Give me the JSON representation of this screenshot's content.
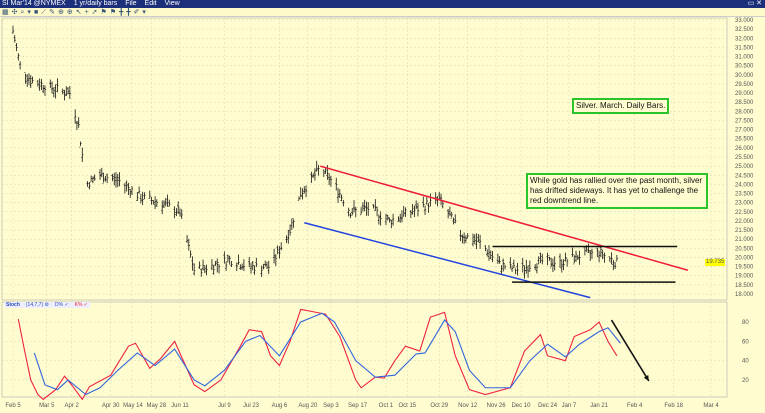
{
  "window": {
    "symbol": "SI Mar'14 @NYMEX",
    "interval": "1 yr/daily bars",
    "menu": [
      "File",
      "Edit",
      "View"
    ],
    "controls": "▭ ✕"
  },
  "toolbar": {
    "icons": [
      "chart-icon",
      "crosshair-icon",
      "zoom-icon",
      "dropdown-icon",
      "bar-icon",
      "line-icon",
      "draw-icon",
      "magnify-icon",
      "magnify-icon",
      "cursor-icon",
      "plus-icon",
      "arrow-icon",
      "flag-icon",
      "flag-icon",
      "marker-icon",
      "marker-icon",
      "pencil-icon",
      "dropdown-icon"
    ]
  },
  "notes": {
    "title": "Silver. March. Daily Bars.",
    "comment": "While gold has rallied over the past month, silver has drifted sideways.  It has yet to challenge the red downtrend line."
  },
  "stoch_legend": {
    "name": "Stoch",
    "params": "(14,7,7) ⚙",
    "d": "D% ✓",
    "k": "K% ✓"
  },
  "last_price": "19.735",
  "colors": {
    "bars": "#111111",
    "downtrend": "#ee1c3a",
    "uptrend": "#2244dd",
    "channel": "#111111",
    "k": "#ee2244",
    "d": "#3366dd",
    "note_border": "#2bc42b"
  },
  "chart_data": [
    {
      "type": "bar",
      "title": "SI Mar'14 daily bars",
      "ylim": [
        18,
        33
      ],
      "yticks": [
        "33.000",
        "32.500",
        "32.000",
        "31.500",
        "31.000",
        "30.500",
        "30.000",
        "29.500",
        "29.000",
        "28.500",
        "28.000",
        "27.500",
        "27.000",
        "26.500",
        "26.000",
        "25.500",
        "25.000",
        "24.500",
        "24.000",
        "23.500",
        "23.000",
        "22.500",
        "22.000",
        "21.500",
        "21.000",
        "20.500",
        "20.000",
        "19.500",
        "19.000",
        "18.500",
        "18.000"
      ],
      "x_unit": "days since Feb 5",
      "xlim": [
        -2,
        391
      ],
      "xticks": [
        {
          "label": "Feb 5",
          "day": 0
        },
        {
          "label": "Mar 5",
          "day": 19
        },
        {
          "label": "Apr 2",
          "day": 33
        },
        {
          "label": "Apr 30",
          "day": 55
        },
        {
          "label": "May 14",
          "day": 67
        },
        {
          "label": "May 28",
          "day": 78
        },
        {
          "label": "Jun 11",
          "day": 94
        },
        {
          "label": "Jul 9",
          "day": 119
        },
        {
          "label": "Jul 23",
          "day": 134
        },
        {
          "label": "Aug 6",
          "day": 150
        },
        {
          "label": "Aug 20",
          "day": 166
        },
        {
          "label": "Sep 3",
          "day": 179
        },
        {
          "label": "Sep 17",
          "day": 194
        },
        {
          "label": "Oct 1",
          "day": 210
        },
        {
          "label": "Oct 15",
          "day": 222
        },
        {
          "label": "Oct 29",
          "day": 240
        },
        {
          "label": "Nov 12",
          "day": 256
        },
        {
          "label": "Nov 26",
          "day": 272
        },
        {
          "label": "Dec 10",
          "day": 286
        },
        {
          "label": "Dec 24",
          "day": 301
        },
        {
          "label": "Jan 7",
          "day": 313
        },
        {
          "label": "Jan 21",
          "day": 330
        },
        {
          "label": "Feb 4",
          "day": 350
        },
        {
          "label": "Feb 18",
          "day": 372
        },
        {
          "label": "Mar 4",
          "day": 393
        }
      ],
      "close_anchors": [
        [
          0,
          32.4
        ],
        [
          4,
          30.5
        ],
        [
          10,
          29.7
        ],
        [
          21,
          29.3
        ],
        [
          32,
          29
        ],
        [
          37,
          27.2
        ],
        [
          41,
          24
        ],
        [
          49,
          24.5
        ],
        [
          60,
          24.2
        ],
        [
          72,
          23.3
        ],
        [
          83,
          23
        ],
        [
          94,
          22.5
        ],
        [
          102,
          19.3
        ],
        [
          111,
          19.5
        ],
        [
          122,
          19.9
        ],
        [
          133,
          19.5
        ],
        [
          145,
          19.5
        ],
        [
          156,
          21.5
        ],
        [
          162,
          23.5
        ],
        [
          173,
          24.9
        ],
        [
          181,
          24
        ],
        [
          190,
          22.5
        ],
        [
          201,
          22.7
        ],
        [
          212,
          22
        ],
        [
          224,
          22.5
        ],
        [
          235,
          23
        ],
        [
          240,
          23.2
        ],
        [
          252,
          21.3
        ],
        [
          263,
          20.8
        ],
        [
          274,
          19.6
        ],
        [
          285,
          19.3
        ],
        [
          297,
          19.8
        ],
        [
          308,
          19.7
        ],
        [
          319,
          20.1
        ],
        [
          330,
          20.3
        ],
        [
          340,
          19.7
        ]
      ],
      "trendlines": [
        {
          "name": "downtrend",
          "color": "#ee1c3a",
          "from": [
            173,
            25.0
          ],
          "to": [
            380,
            19.3
          ]
        },
        {
          "name": "uptrend",
          "color": "#2244dd",
          "from": [
            164,
            21.9
          ],
          "to": [
            325,
            17.8
          ]
        },
        {
          "name": "range-top",
          "color": "#111111",
          "from": [
            270,
            20.6
          ],
          "to": [
            374,
            20.6
          ]
        },
        {
          "name": "range-bottom",
          "color": "#111111",
          "from": [
            281,
            18.65
          ],
          "to": [
            373,
            18.65
          ]
        }
      ]
    },
    {
      "type": "line",
      "title": "Stoch (14,7,7)",
      "ylim": [
        0,
        100
      ],
      "yticks": [
        "80",
        "60",
        "40",
        "20"
      ],
      "series": [
        {
          "name": "K%",
          "color": "#ee2244",
          "points": [
            [
              3,
              83
            ],
            [
              6,
              55
            ],
            [
              10,
              20
            ],
            [
              14,
              5
            ],
            [
              17,
              0
            ],
            [
              24,
              10
            ],
            [
              29,
              24
            ],
            [
              33,
              15
            ],
            [
              39,
              0
            ],
            [
              43,
              13
            ],
            [
              55,
              25
            ],
            [
              65,
              55
            ],
            [
              69,
              58
            ],
            [
              77,
              32
            ],
            [
              83,
              42
            ],
            [
              91,
              60
            ],
            [
              102,
              15
            ],
            [
              108,
              8
            ],
            [
              117,
              20
            ],
            [
              128,
              55
            ],
            [
              133,
              72
            ],
            [
              140,
              70
            ],
            [
              145,
              45
            ],
            [
              150,
              35
            ],
            [
              156,
              60
            ],
            [
              162,
              93
            ],
            [
              168,
              91
            ],
            [
              176,
              88
            ],
            [
              184,
              65
            ],
            [
              193,
              20
            ],
            [
              196,
              12
            ],
            [
              204,
              23
            ],
            [
              209,
              22
            ],
            [
              215,
              40
            ],
            [
              221,
              55
            ],
            [
              229,
              50
            ],
            [
              235,
              85
            ],
            [
              243,
              90
            ],
            [
              249,
              45
            ],
            [
              257,
              10
            ],
            [
              266,
              5
            ],
            [
              280,
              12
            ],
            [
              288,
              50
            ],
            [
              297,
              67
            ],
            [
              301,
              45
            ],
            [
              311,
              40
            ],
            [
              316,
              65
            ],
            [
              325,
              72
            ],
            [
              330,
              80
            ],
            [
              335,
              60
            ],
            [
              340,
              45
            ]
          ]
        },
        {
          "name": "D%",
          "color": "#3366dd",
          "points": [
            [
              12,
              48
            ],
            [
              18,
              15
            ],
            [
              25,
              10
            ],
            [
              31,
              20
            ],
            [
              41,
              5
            ],
            [
              49,
              12
            ],
            [
              59,
              30
            ],
            [
              70,
              48
            ],
            [
              80,
              35
            ],
            [
              91,
              52
            ],
            [
              102,
              20
            ],
            [
              108,
              14
            ],
            [
              119,
              30
            ],
            [
              131,
              60
            ],
            [
              139,
              66
            ],
            [
              150,
              45
            ],
            [
              162,
              80
            ],
            [
              174,
              89
            ],
            [
              181,
              80
            ],
            [
              193,
              40
            ],
            [
              204,
              23
            ],
            [
              215,
              25
            ],
            [
              227,
              47
            ],
            [
              232,
              48
            ],
            [
              243,
              82
            ],
            [
              249,
              70
            ],
            [
              257,
              30
            ],
            [
              266,
              12
            ],
            [
              280,
              12
            ],
            [
              291,
              40
            ],
            [
              301,
              57
            ],
            [
              311,
              44
            ],
            [
              319,
              57
            ],
            [
              330,
              70
            ],
            [
              335,
              74
            ],
            [
              342,
              58
            ]
          ]
        }
      ],
      "annotations": [
        {
          "type": "arrow",
          "from": [
            337,
            82
          ],
          "to": [
            358,
            19
          ]
        }
      ]
    }
  ]
}
